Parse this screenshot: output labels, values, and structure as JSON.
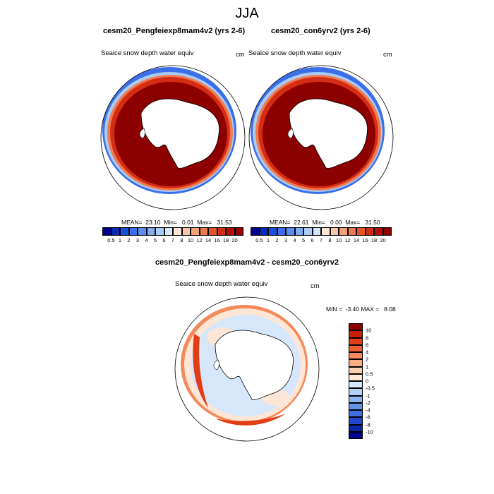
{
  "figure": {
    "title": "JJA",
    "panels": [
      {
        "title": "cesm20_Pengfeiexp8mam4v2 (yrs 2-6)",
        "variable": "Seaice snow depth water equiv",
        "unit": "cm",
        "stats": "MEAN=  23.10  Min=   0.01  Max=   31.53"
      },
      {
        "title": "cesm20_con6yrv2 (yrs 2-6)",
        "variable": "Seaice snow depth water equiv",
        "unit": "cm",
        "stats": "MEAN=  22.61  Min=   0.00  Max=   31.50"
      }
    ],
    "diff_panel": {
      "title": "cesm20_Pengfeiexp8mam4v2 - cesm20_con6yrv2",
      "variable": "Seaice snow depth water equiv",
      "unit": "cm",
      "stats": "MIN =  -3.40 MAX =   8.08"
    },
    "top_colorbar": {
      "labels": [
        "0.5",
        "1",
        "2",
        "3",
        "4",
        "5",
        "6",
        "7",
        "8",
        "10",
        "12",
        "14",
        "16",
        "18",
        "20"
      ],
      "colors": [
        "#00008c",
        "#0a2bb5",
        "#1a4fdb",
        "#3b6fe8",
        "#5b8ef0",
        "#80aef5",
        "#a9ccf8",
        "#d6e7fb",
        "#fde6d6",
        "#f9c7a6",
        "#f5a177",
        "#ef7a4f",
        "#e6522e",
        "#d52c14",
        "#b50e05",
        "#8c0000"
      ]
    },
    "diff_colorbar": {
      "labels": [
        "10",
        "8",
        "6",
        "4",
        "2",
        "1",
        "0.5",
        "0",
        "-0.5",
        "-1",
        "-2",
        "-4",
        "-6",
        "-8",
        "-10"
      ],
      "colors": [
        "#8c0000",
        "#c81e05",
        "#e23d14",
        "#ee6030",
        "#f4895a",
        "#f8ad86",
        "#fbcfb2",
        "#fde8da",
        "#d6e7fb",
        "#b3d2f8",
        "#8cb5f2",
        "#6593ea",
        "#3f6fe0",
        "#2148cc",
        "#0c26a8",
        "#00008c"
      ]
    },
    "map_colors": {
      "ice_high": "#8c0000",
      "ice_mid": "#d52c14",
      "ice_edge_orange": "#ef7a4f",
      "ice_edge_blue": "#3b6fe8",
      "ice_edge_light": "#a9ccf8",
      "diff_light_blue": "#d6e7fb",
      "diff_light_orange": "#fde6d6",
      "diff_orange": "#f4895a",
      "diff_red": "#e23d14"
    }
  }
}
